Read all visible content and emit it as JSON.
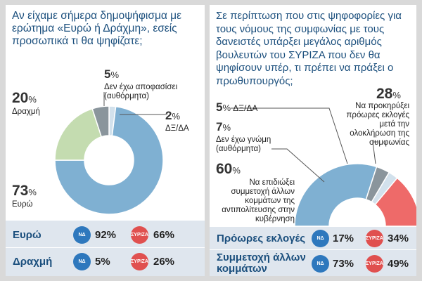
{
  "left": {
    "question": "Αν είχαμε σήμερα δημοψήφισμα με ερώτημα «Ευρώ ή Δράχμη», εσείς προσωπικά τι θα ψηφίζατε;",
    "chart_data": {
      "type": "pie",
      "style": "donut",
      "title": "Αν είχαμε σήμερα δημοψήφισμα με ερώτημα «Ευρώ ή Δράχμη», εσείς προσωπικά τι θα ψηφίζατε;",
      "slices": [
        {
          "label": "Ευρώ",
          "value": 73,
          "color": "#7fb0d2"
        },
        {
          "label": "Δραχμή",
          "value": 20,
          "color": "#c4dcb0"
        },
        {
          "label": "Δεν έχω αποφασίσει (αυθόρμητα)",
          "value": 5,
          "color": "#8a959c"
        },
        {
          "label": "ΔΞ/ΔΑ",
          "value": 2,
          "color": "#d2e1ec"
        }
      ]
    },
    "labels": {
      "euro_value": "73",
      "euro_name": "Ευρώ",
      "drachma_value": "20",
      "drachma_name": "Δραχμή",
      "undecided_value": "5",
      "undecided_name": "Δεν έχω αποφασίσει",
      "undecided_note": "(αυθόρμητα)",
      "dk_value": "2",
      "dk_name": "ΔΞ/ΔΑ",
      "pct_sign": "%"
    },
    "rows": [
      {
        "name": "Ευρώ",
        "nd": "92%",
        "syriza": "66%"
      },
      {
        "name": "Δραχμή",
        "nd": "5%",
        "syriza": "26%"
      }
    ]
  },
  "right": {
    "question": "Σε περίπτωση που στις ψηφοφορίες για τους νόμους της συμφωνίας με τους δανειστές υπάρξει μεγάλος αριθμός βουλευτών του ΣΥΡΙΖΑ που δεν θα ψηφίσουν υπέρ, τι πρέπει να πράξει ο πρωθυπουργός;",
    "chart_data": {
      "type": "pie",
      "style": "half-donut",
      "title": "Σε περίπτωση που στις ψηφοφορίες για τους νόμους της συμφωνίας με τους δανειστές υπάρξει μεγάλος αριθμός βουλευτών του ΣΥΡΙΖΑ που δεν θα ψηφίσουν υπέρ, τι πρέπει να πράξει ο πρωθυπουργός;",
      "slices": [
        {
          "label": "Να επιδιώξει συμμετοχή άλλων κομμάτων της αντιπολίτευσης στην κυβέρνηση",
          "value": 60,
          "color": "#7fb0d2"
        },
        {
          "label": "Δεν έχω γνώμη (αυθόρμητα)",
          "value": 7,
          "color": "#8a959c"
        },
        {
          "label": "ΔΞ/ΔΑ",
          "value": 5,
          "color": "#d2e1ec"
        },
        {
          "label": "Να προκηρύξει πρόωρες εκλογές μετά την ολοκλήρωση της συμφωνίας",
          "value": 28,
          "color": "#ee6a69"
        }
      ]
    },
    "labels": {
      "coalition_value": "60",
      "coalition_text": "Να επιδιώξει συμμετοχή άλλων κομμάτων της αντιπολίτευσης στην κυβέρνηση",
      "noopinion_value": "7",
      "noopinion_name": "Δεν έχω γνώμη",
      "noopinion_note": "(αυθόρμητα)",
      "dk_value": "5",
      "dk_name": "ΔΞ/ΔΑ",
      "elections_value": "28",
      "elections_text": "Να προκηρύξει πρόωρες εκλογές μετά την ολοκλήρωση της συμφωνίας",
      "pct_sign": "%"
    },
    "rows": [
      {
        "name": "Πρόωρες εκλογές",
        "nd": "17%",
        "syriza": "34%"
      },
      {
        "name": "Συμμετοχή άλλων κομμάτων",
        "nd": "73%",
        "syriza": "49%"
      }
    ]
  },
  "party_badges": {
    "nd": "ΝΔ",
    "syriza": "ΣΥΡΙΖΑ"
  },
  "colors": {
    "title_blue": "#1b4f7d",
    "nd_blue": "#2e78bd",
    "syriza_red": "#e0504f",
    "bottom_band": "#dfe6ee"
  }
}
